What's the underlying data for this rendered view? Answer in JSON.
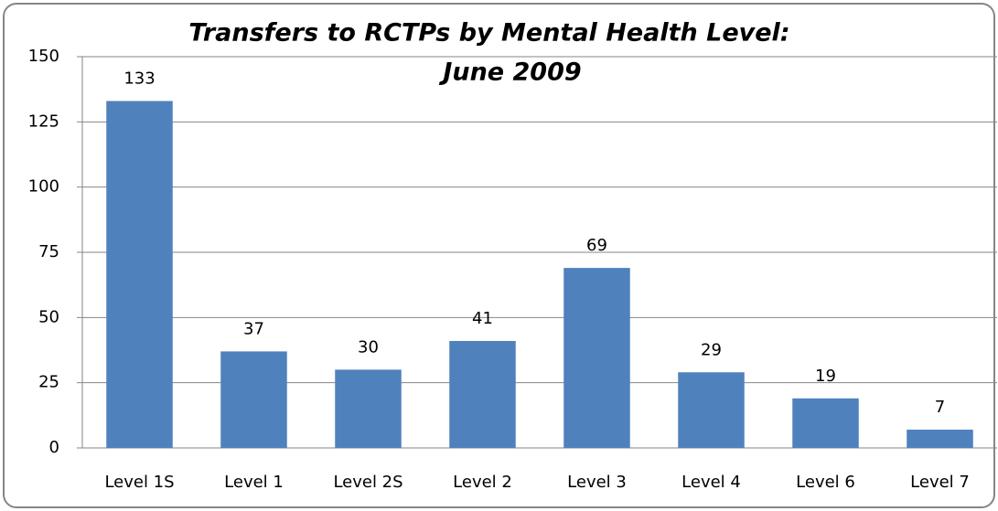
{
  "chart_data": {
    "type": "bar",
    "title": [
      "Transfers to RCTPs by Mental Health Level:",
      "June 2009"
    ],
    "categories": [
      "Level 1S",
      "Level 1",
      "Level 2S",
      "Level 2",
      "Level 3",
      "Level 4",
      "Level 6",
      "Level 7"
    ],
    "values": [
      133,
      37,
      30,
      41,
      69,
      29,
      19,
      7
    ],
    "color": "#4f81bd",
    "ylim": [
      0,
      150
    ],
    "yticks": [
      0,
      25,
      50,
      75,
      100,
      125,
      150
    ],
    "grid": true
  }
}
